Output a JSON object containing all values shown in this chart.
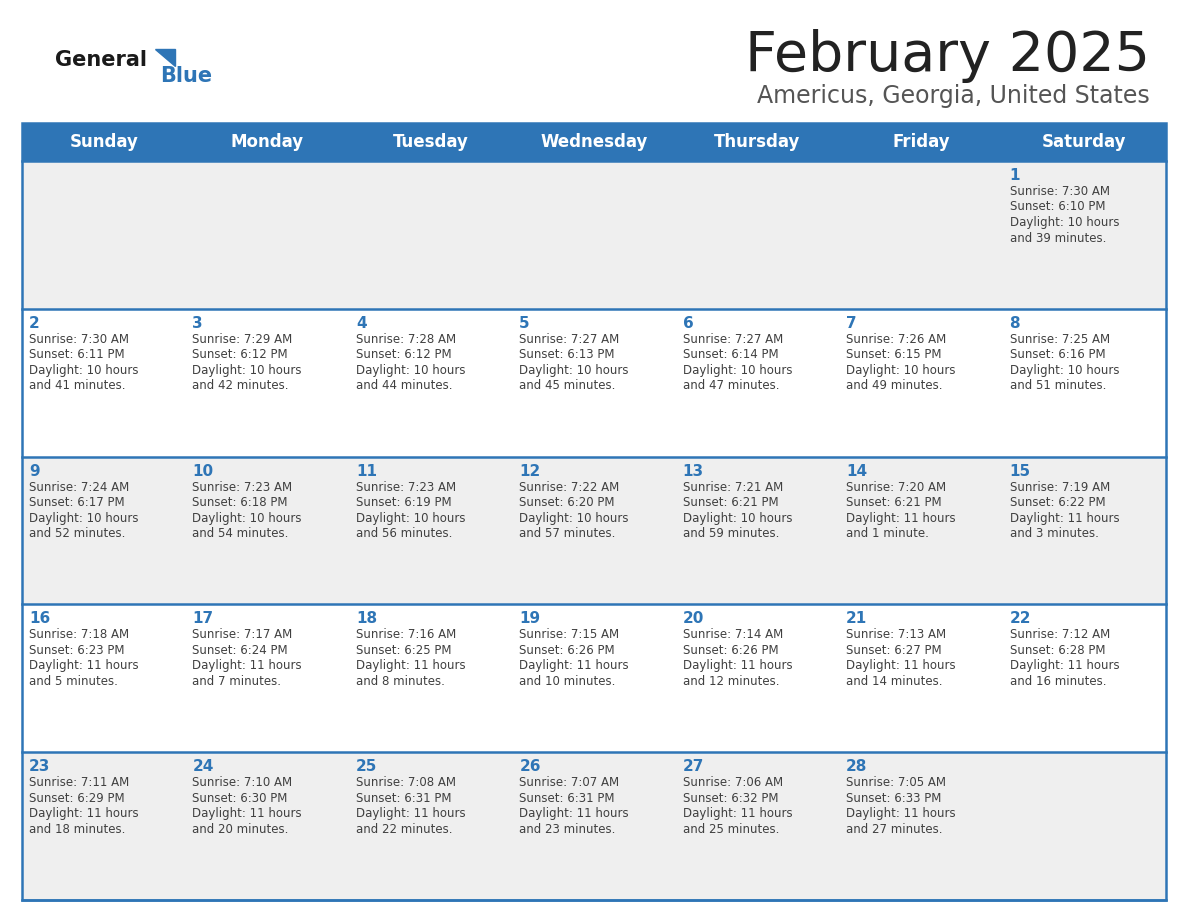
{
  "title": "February 2025",
  "subtitle": "Americus, Georgia, United States",
  "header_bg": "#2E75B6",
  "header_text_color": "#FFFFFF",
  "day_names": [
    "Sunday",
    "Monday",
    "Tuesday",
    "Wednesday",
    "Thursday",
    "Friday",
    "Saturday"
  ],
  "cell_bg_light": "#EFEFEF",
  "cell_bg_white": "#FFFFFF",
  "cell_border_color": "#2E75B6",
  "day_number_color": "#2E75B6",
  "info_text_color": "#404040",
  "title_color": "#222222",
  "subtitle_color": "#555555",
  "logo_general_color": "#1a1a1a",
  "logo_blue_color": "#2E75B6",
  "weeks": [
    [
      {
        "day": null,
        "sunrise": null,
        "sunset": null,
        "daylight": null
      },
      {
        "day": null,
        "sunrise": null,
        "sunset": null,
        "daylight": null
      },
      {
        "day": null,
        "sunrise": null,
        "sunset": null,
        "daylight": null
      },
      {
        "day": null,
        "sunrise": null,
        "sunset": null,
        "daylight": null
      },
      {
        "day": null,
        "sunrise": null,
        "sunset": null,
        "daylight": null
      },
      {
        "day": null,
        "sunrise": null,
        "sunset": null,
        "daylight": null
      },
      {
        "day": 1,
        "sunrise": "7:30 AM",
        "sunset": "6:10 PM",
        "daylight": "10 hours\nand 39 minutes."
      }
    ],
    [
      {
        "day": 2,
        "sunrise": "7:30 AM",
        "sunset": "6:11 PM",
        "daylight": "10 hours\nand 41 minutes."
      },
      {
        "day": 3,
        "sunrise": "7:29 AM",
        "sunset": "6:12 PM",
        "daylight": "10 hours\nand 42 minutes."
      },
      {
        "day": 4,
        "sunrise": "7:28 AM",
        "sunset": "6:12 PM",
        "daylight": "10 hours\nand 44 minutes."
      },
      {
        "day": 5,
        "sunrise": "7:27 AM",
        "sunset": "6:13 PM",
        "daylight": "10 hours\nand 45 minutes."
      },
      {
        "day": 6,
        "sunrise": "7:27 AM",
        "sunset": "6:14 PM",
        "daylight": "10 hours\nand 47 minutes."
      },
      {
        "day": 7,
        "sunrise": "7:26 AM",
        "sunset": "6:15 PM",
        "daylight": "10 hours\nand 49 minutes."
      },
      {
        "day": 8,
        "sunrise": "7:25 AM",
        "sunset": "6:16 PM",
        "daylight": "10 hours\nand 51 minutes."
      }
    ],
    [
      {
        "day": 9,
        "sunrise": "7:24 AM",
        "sunset": "6:17 PM",
        "daylight": "10 hours\nand 52 minutes."
      },
      {
        "day": 10,
        "sunrise": "7:23 AM",
        "sunset": "6:18 PM",
        "daylight": "10 hours\nand 54 minutes."
      },
      {
        "day": 11,
        "sunrise": "7:23 AM",
        "sunset": "6:19 PM",
        "daylight": "10 hours\nand 56 minutes."
      },
      {
        "day": 12,
        "sunrise": "7:22 AM",
        "sunset": "6:20 PM",
        "daylight": "10 hours\nand 57 minutes."
      },
      {
        "day": 13,
        "sunrise": "7:21 AM",
        "sunset": "6:21 PM",
        "daylight": "10 hours\nand 59 minutes."
      },
      {
        "day": 14,
        "sunrise": "7:20 AM",
        "sunset": "6:21 PM",
        "daylight": "11 hours\nand 1 minute."
      },
      {
        "day": 15,
        "sunrise": "7:19 AM",
        "sunset": "6:22 PM",
        "daylight": "11 hours\nand 3 minutes."
      }
    ],
    [
      {
        "day": 16,
        "sunrise": "7:18 AM",
        "sunset": "6:23 PM",
        "daylight": "11 hours\nand 5 minutes."
      },
      {
        "day": 17,
        "sunrise": "7:17 AM",
        "sunset": "6:24 PM",
        "daylight": "11 hours\nand 7 minutes."
      },
      {
        "day": 18,
        "sunrise": "7:16 AM",
        "sunset": "6:25 PM",
        "daylight": "11 hours\nand 8 minutes."
      },
      {
        "day": 19,
        "sunrise": "7:15 AM",
        "sunset": "6:26 PM",
        "daylight": "11 hours\nand 10 minutes."
      },
      {
        "day": 20,
        "sunrise": "7:14 AM",
        "sunset": "6:26 PM",
        "daylight": "11 hours\nand 12 minutes."
      },
      {
        "day": 21,
        "sunrise": "7:13 AM",
        "sunset": "6:27 PM",
        "daylight": "11 hours\nand 14 minutes."
      },
      {
        "day": 22,
        "sunrise": "7:12 AM",
        "sunset": "6:28 PM",
        "daylight": "11 hours\nand 16 minutes."
      }
    ],
    [
      {
        "day": 23,
        "sunrise": "7:11 AM",
        "sunset": "6:29 PM",
        "daylight": "11 hours\nand 18 minutes."
      },
      {
        "day": 24,
        "sunrise": "7:10 AM",
        "sunset": "6:30 PM",
        "daylight": "11 hours\nand 20 minutes."
      },
      {
        "day": 25,
        "sunrise": "7:08 AM",
        "sunset": "6:31 PM",
        "daylight": "11 hours\nand 22 minutes."
      },
      {
        "day": 26,
        "sunrise": "7:07 AM",
        "sunset": "6:31 PM",
        "daylight": "11 hours\nand 23 minutes."
      },
      {
        "day": 27,
        "sunrise": "7:06 AM",
        "sunset": "6:32 PM",
        "daylight": "11 hours\nand 25 minutes."
      },
      {
        "day": 28,
        "sunrise": "7:05 AM",
        "sunset": "6:33 PM",
        "daylight": "11 hours\nand 27 minutes."
      },
      {
        "day": null,
        "sunrise": null,
        "sunset": null,
        "daylight": null
      }
    ]
  ]
}
